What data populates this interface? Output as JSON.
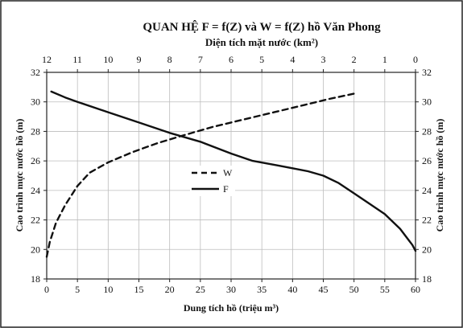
{
  "chart_data": {
    "type": "line",
    "title": "QUAN HỆ F =  f(Z) và W =  f(Z) hồ Văn Phong",
    "top_axis_label": "Diện tích mặt nước (km²)",
    "xlabel": "Dung tích hồ (triệu m³)",
    "ylabel_left": "Cao trình mực nước hồ  (m)",
    "ylabel_right": "Cao trình mực nước hồ  (m)",
    "x_bottom_ticks": [
      "0",
      "5",
      "10",
      "15",
      "20",
      "25",
      "30",
      "35",
      "40",
      "45",
      "50",
      "55",
      "60"
    ],
    "x_top_ticks": [
      "12",
      "11",
      "10",
      "9",
      "8",
      "7",
      "6",
      "5",
      "4",
      "3",
      "2",
      "1",
      "0"
    ],
    "y_ticks": [
      "18",
      "20",
      "22",
      "24",
      "26",
      "28",
      "30",
      "32"
    ],
    "xlim_bottom": [
      0,
      60
    ],
    "xlim_top": [
      12,
      0
    ],
    "ylim": [
      18,
      32
    ],
    "grid": true,
    "legend_position": "center-left",
    "series": [
      {
        "name": "W",
        "axis": "bottom",
        "style": "dashed",
        "color": "#111111",
        "points": [
          [
            0,
            19.5
          ],
          [
            0.5,
            20.5
          ],
          [
            1.5,
            21.8
          ],
          [
            3,
            23.0
          ],
          [
            5,
            24.3
          ],
          [
            7,
            25.2
          ],
          [
            10,
            25.9
          ],
          [
            14,
            26.6
          ],
          [
            18,
            27.2
          ],
          [
            22,
            27.7
          ],
          [
            27,
            28.3
          ],
          [
            32,
            28.8
          ],
          [
            37,
            29.3
          ],
          [
            42,
            29.8
          ],
          [
            46,
            30.2
          ],
          [
            50.5,
            30.6
          ]
        ]
      },
      {
        "name": "F",
        "axis": "top",
        "style": "solid",
        "color": "#111111",
        "points": [
          [
            11.85,
            30.7
          ],
          [
            11.4,
            30.3
          ],
          [
            11,
            30.0
          ],
          [
            10,
            29.3
          ],
          [
            9,
            28.6
          ],
          [
            8,
            27.9
          ],
          [
            7,
            27.3
          ],
          [
            6,
            26.5
          ],
          [
            5.3,
            26.0
          ],
          [
            4.5,
            25.7
          ],
          [
            4,
            25.5
          ],
          [
            3.5,
            25.3
          ],
          [
            3,
            25.0
          ],
          [
            2.5,
            24.5
          ],
          [
            2,
            23.8
          ],
          [
            1.5,
            23.1
          ],
          [
            1,
            22.4
          ],
          [
            0.5,
            21.4
          ],
          [
            0.1,
            20.3
          ],
          [
            0,
            19.9
          ]
        ]
      }
    ]
  }
}
